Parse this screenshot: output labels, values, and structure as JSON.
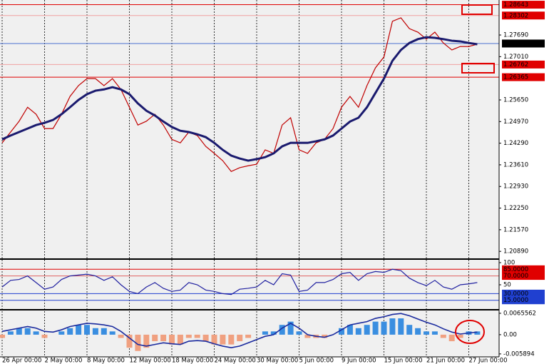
{
  "chart_data": [
    {
      "type": "line",
      "categories": [
        "26 Apr 00:00",
        null,
        null,
        null,
        null,
        "2 May 00:00",
        null,
        null,
        null,
        null,
        "8 May 00:00",
        null,
        null,
        null,
        null,
        "12 May 00:00",
        null,
        null,
        null,
        null,
        "18 May 00:00",
        null,
        null,
        null,
        null,
        "24 May 00:00",
        null,
        null,
        null,
        null,
        "30 May 00:00",
        null,
        null,
        null,
        null,
        "5 Jun 00:00",
        null,
        null,
        null,
        null,
        "9 Jun 00:00",
        null,
        null,
        null,
        null,
        "15 Jun 00:00",
        null,
        null,
        null,
        null,
        "21 Jun 00:00",
        null,
        null,
        null,
        null,
        "27 Jun 00:00",
        null
      ],
      "series": [
        {
          "color": "#c00000",
          "values": [
            1.243,
            1.2464,
            1.2498,
            1.2542,
            1.252,
            1.2475,
            1.2475,
            1.252,
            1.2576,
            1.261,
            1.2632,
            1.2632,
            1.261,
            1.2632,
            1.2598,
            1.2542,
            1.2486,
            1.2498,
            1.252,
            1.2486,
            1.2441,
            1.243,
            1.2464,
            1.2453,
            1.2419,
            1.2397,
            1.2374,
            1.234,
            1.2352,
            1.2358,
            1.2363,
            1.2408,
            1.2397,
            1.2486,
            1.2509,
            1.2408,
            1.2397,
            1.243,
            1.2441,
            1.2475,
            1.2542,
            1.2576,
            1.2542,
            1.261,
            1.2666,
            1.27,
            1.2812,
            1.2823,
            1.2789,
            1.2778,
            1.2756,
            1.2778,
            1.2744,
            1.2722,
            1.2733,
            1.2733,
            1.274
          ]
        },
        {
          "color": "#1a1a6e",
          "values": [
            1.2441,
            1.2453,
            1.2464,
            1.2475,
            1.2486,
            1.2493,
            1.2502,
            1.252,
            1.2542,
            1.2565,
            1.2583,
            1.2594,
            1.2598,
            1.2605,
            1.2598,
            1.2583,
            1.2554,
            1.2531,
            1.2516,
            1.2497,
            1.248,
            1.2468,
            1.2464,
            1.2457,
            1.2448,
            1.243,
            1.2408,
            1.239,
            1.2381,
            1.2374,
            1.2379,
            1.2385,
            1.2397,
            1.2419,
            1.243,
            1.243,
            1.243,
            1.2435,
            1.2441,
            1.2453,
            1.2475,
            1.2497,
            1.2509,
            1.2542,
            1.2587,
            1.2632,
            1.2688,
            1.2722,
            1.2744,
            1.2756,
            1.2762,
            1.276,
            1.2756,
            1.2751,
            1.2749,
            1.2744,
            1.274
          ]
        }
      ],
      "ylim": [
        1.2067,
        1.2879
      ],
      "yticks": [
        {
          "value": 1.2769,
          "label": "1.27690"
        },
        {
          "value": 1.2701,
          "label": "1.27010"
        },
        {
          "value": 1.2565,
          "label": "1.25650"
        },
        {
          "value": 1.2497,
          "label": "1.24970"
        },
        {
          "value": 1.2429,
          "label": "1.24290"
        },
        {
          "value": 1.2361,
          "label": "1.23610"
        },
        {
          "value": 1.2293,
          "label": "1.22930"
        },
        {
          "value": 1.2225,
          "label": "1.22250"
        },
        {
          "value": 1.2157,
          "label": "1.21570"
        },
        {
          "value": 1.2089,
          "label": "1.20890"
        }
      ],
      "levels": [
        {
          "value": 1.28643,
          "color": "#e00000",
          "label_color": "#e00000"
        },
        {
          "value": 1.28302,
          "color": "#f0a0a0",
          "label_color": "#e00000"
        },
        {
          "value": 1.27422,
          "color": "#4a6fd0",
          "label_color": "#000000"
        },
        {
          "value": 1.26762,
          "color": "#f0a0a0",
          "label_color": "#e00000"
        },
        {
          "value": 1.26365,
          "color": "#e00000",
          "label_color": "#e00000"
        }
      ],
      "grid": true
    },
    {
      "type": "line",
      "series": [
        {
          "color": "#2020a0",
          "values": [
            45,
            60,
            62,
            70,
            55,
            40,
            45,
            62,
            70,
            72,
            74,
            70,
            60,
            68,
            50,
            35,
            30,
            45,
            55,
            42,
            35,
            38,
            55,
            50,
            38,
            35,
            30,
            28,
            40,
            42,
            45,
            60,
            50,
            75,
            72,
            35,
            38,
            55,
            55,
            62,
            75,
            78,
            60,
            75,
            80,
            78,
            85,
            82,
            65,
            55,
            48,
            60,
            45,
            40,
            50,
            52,
            55
          ]
        }
      ],
      "ylim": [
        0,
        100
      ],
      "yticks": [
        100,
        50
      ],
      "levels": [
        {
          "value": 85,
          "label": "85.0000",
          "color": "#e00000",
          "label_color": "#e00000"
        },
        {
          "value": 70,
          "label": "70.0000",
          "color": "#e06060",
          "label_color": "#e00000"
        },
        {
          "value": 30,
          "label": "30.0000",
          "color": "#2040d0",
          "label_color": "#2040d0"
        },
        {
          "value": 15,
          "label": "15.0000",
          "color": "#2040d0",
          "label_color": "#2040d0"
        }
      ]
    },
    {
      "type": "bar",
      "values": [
        -0.001,
        0.001,
        0.002,
        0.002,
        0.001,
        -0.001,
        0,
        0.001,
        0.002,
        0.003,
        0.003,
        0.002,
        0.002,
        0.001,
        -0.001,
        -0.004,
        -0.005,
        -0.004,
        -0.002,
        -0.002,
        -0.003,
        -0.003,
        -0.001,
        -0.001,
        -0.002,
        -0.003,
        -0.003,
        -0.003,
        -0.002,
        -0.001,
        0,
        0.001,
        0.001,
        0.003,
        0.004,
        0.001,
        -0.001,
        -0.001,
        -0.001,
        0,
        0.002,
        0.003,
        0.002,
        0.003,
        0.004,
        0.004,
        0.005,
        0.005,
        0.003,
        0.002,
        0.001,
        0.001,
        -0.001,
        -0.002,
        -0.001,
        0.001,
        0.001
      ],
      "positive_color": "#3a8ee0",
      "negative_color": "#f0a080",
      "line": {
        "color": "#1a2a9e",
        "values": [
          0.001,
          0.0015,
          0.002,
          0.0025,
          0.002,
          0.001,
          0.0008,
          0.0015,
          0.0025,
          0.003,
          0.0035,
          0.0033,
          0.003,
          0.0025,
          0.001,
          -0.001,
          -0.003,
          -0.0035,
          -0.003,
          -0.0025,
          -0.0028,
          -0.003,
          -0.002,
          -0.0018,
          -0.002,
          -0.0028,
          -0.0035,
          -0.004,
          -0.0035,
          -0.0025,
          -0.0015,
          -0.0005,
          0,
          0.002,
          0.0035,
          0.002,
          0,
          -0.0005,
          -0.0008,
          0,
          0.0015,
          0.003,
          0.0035,
          0.004,
          0.005,
          0.0055,
          0.0062,
          0.0065,
          0.0058,
          0.0048,
          0.0038,
          0.003,
          0.0018,
          0.0008,
          0.0002,
          0.0005,
          0.0008
        ]
      },
      "ylim": [
        -0.0068,
        0.0072
      ],
      "yticks": [
        0.0065562,
        {
          "value": 0,
          "label": "0.00"
        },
        -0.005894
      ]
    }
  ]
}
